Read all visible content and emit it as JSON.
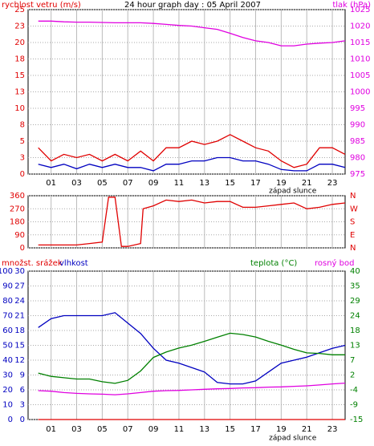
{
  "chart_data": [
    {
      "type": "line",
      "title": "24 hour graph day : 05 April 2007",
      "ylabel": "rychlost vetru (m/s)",
      "y2label": "tlak (hPa)",
      "ycolor": "#e00000",
      "y2color": "#e000e0",
      "x": [
        0,
        1,
        2,
        3,
        4,
        5,
        6,
        7,
        8,
        9,
        10,
        11,
        12,
        13,
        14,
        15,
        16,
        17,
        18,
        19,
        20,
        21,
        22,
        23,
        24
      ],
      "xlim": [
        -0.8,
        24
      ],
      "xticks": [
        {
          "value": 1,
          "label": "01"
        },
        {
          "value": 3,
          "label": "03"
        },
        {
          "value": 5,
          "label": "05"
        },
        {
          "value": 7,
          "label": "07"
        },
        {
          "value": 9,
          "label": "09"
        },
        {
          "value": 11,
          "label": "11"
        },
        {
          "value": 13,
          "label": "13"
        },
        {
          "value": 15,
          "label": "15"
        },
        {
          "value": 17,
          "label": "17"
        },
        {
          "value": 19,
          "label": "19"
        },
        {
          "value": 21,
          "label": "21"
        },
        {
          "value": 23,
          "label": "23"
        }
      ],
      "ylim": [
        0,
        25
      ],
      "yticks": [
        0,
        {
          "value": 2.5,
          "label": "3"
        },
        5,
        {
          "value": 7.5,
          "label": "8"
        },
        10,
        {
          "value": 12.5,
          "label": "13"
        },
        15,
        {
          "value": 17.5,
          "label": "18"
        },
        20,
        {
          "value": 22.5,
          "label": "23"
        },
        25
      ],
      "y2lim": [
        975,
        1025
      ],
      "y2ticks": [
        975,
        980,
        985,
        990,
        995,
        1000,
        1005,
        1010,
        1015,
        1020,
        1025
      ],
      "grid": true,
      "annotation": {
        "text": "západ slunce",
        "x": 19.9
      },
      "series": [
        {
          "color": "#e00000",
          "values": [
            4,
            2,
            3,
            2.5,
            3,
            2,
            3,
            2,
            3.5,
            2,
            4,
            4,
            5,
            4.5,
            5,
            6,
            5,
            4,
            3.5,
            2,
            1,
            1.5,
            4,
            4,
            3
          ]
        },
        {
          "color": "#0000c0",
          "values": [
            1.5,
            1,
            1.5,
            0.8,
            1.5,
            1,
            1.5,
            1,
            1,
            0.5,
            1.5,
            1.5,
            2,
            2,
            2.5,
            2.5,
            2,
            2,
            1.5,
            0.7,
            0.5,
            0.5,
            1.5,
            1.5,
            1
          ]
        },
        {
          "color": "#e000e0",
          "axis": "y2",
          "values": [
            1021.5,
            1021.5,
            1021.3,
            1021.2,
            1021.2,
            1021.1,
            1021,
            1021,
            1021,
            1020.8,
            1020.5,
            1020.2,
            1020,
            1019.5,
            1019,
            1017.8,
            1016.5,
            1015.5,
            1015,
            1014,
            1014,
            1014.5,
            1014.8,
            1015,
            1015.5
          ]
        }
      ]
    },
    {
      "type": "line",
      "ycolor": "#e00000",
      "y2color": "#e00000",
      "x": [
        0,
        1,
        2,
        3,
        4,
        5,
        5.5,
        6,
        6.5,
        7,
        8,
        8.2,
        9,
        10,
        11,
        12,
        13,
        14,
        15,
        16,
        17,
        18,
        19,
        20,
        21,
        22,
        23,
        24
      ],
      "xlim": [
        -0.8,
        24
      ],
      "xticks": [
        1,
        3,
        5,
        7,
        9,
        11,
        13,
        15,
        17,
        19,
        21,
        23
      ],
      "ylim": [
        0,
        360
      ],
      "yticks": [
        0,
        90,
        180,
        270,
        360
      ],
      "y2lim": [
        0,
        360
      ],
      "y2ticks": [
        {
          "value": 0,
          "label": "N"
        },
        {
          "value": 90,
          "label": "E"
        },
        {
          "value": 180,
          "label": "S"
        },
        {
          "value": 270,
          "label": "W"
        },
        {
          "value": 360,
          "label": "N"
        }
      ],
      "grid": true,
      "series": [
        {
          "color": "#e00000",
          "values": [
            20,
            20,
            20,
            20,
            30,
            40,
            350,
            350,
            10,
            10,
            30,
            270,
            290,
            330,
            320,
            330,
            310,
            320,
            320,
            280,
            280,
            290,
            300,
            310,
            270,
            280,
            300,
            310
          ]
        }
      ]
    },
    {
      "type": "line",
      "x": [
        0,
        1,
        2,
        3,
        4,
        5,
        6,
        7,
        8,
        9,
        10,
        11,
        12,
        13,
        14,
        15,
        16,
        17,
        18,
        19,
        20,
        21,
        22,
        23,
        24
      ],
      "xlim": [
        -0.8,
        24
      ],
      "xticks": [
        {
          "value": 1,
          "label": "01"
        },
        {
          "value": 3,
          "label": "03"
        },
        {
          "value": 5,
          "label": "05"
        },
        {
          "value": 7,
          "label": "07"
        },
        {
          "value": 9,
          "label": "09"
        },
        {
          "value": 11,
          "label": "11"
        },
        {
          "value": 13,
          "label": "13"
        },
        {
          "value": 15,
          "label": "15"
        },
        {
          "value": 17,
          "label": "17"
        },
        {
          "value": 19,
          "label": "19"
        },
        {
          "value": 21,
          "label": "21"
        },
        {
          "value": 23,
          "label": "23"
        }
      ],
      "ylim": [
        0,
        100
      ],
      "yticks": [
        0,
        10,
        20,
        30,
        40,
        50,
        60,
        70,
        80,
        90,
        100
      ],
      "y3lim": [
        0,
        30
      ],
      "y3ticks": [
        0,
        3,
        6,
        9,
        12,
        15,
        18,
        21,
        24,
        27,
        30
      ],
      "y2lim": [
        -15,
        40
      ],
      "y2ticks": [
        -15,
        {
          "value": -9.5,
          "label": "-9"
        },
        -4,
        {
          "value": 1.5,
          "label": "2"
        },
        7,
        {
          "value": 12.5,
          "label": "13"
        },
        18,
        {
          "value": 23.5,
          "label": "24"
        },
        29,
        {
          "value": 34.5,
          "label": "35"
        },
        40
      ],
      "ycolor": "#0000c0",
      "y3color": "#0000c0",
      "y2color": "#008000",
      "grid": true,
      "annotation": {
        "text": "západ slunce",
        "x": 19.9
      },
      "series": [
        {
          "name": "množst. srážek",
          "color": "#e00000",
          "axis": "y3",
          "values": [
            0,
            0,
            0,
            0,
            0,
            0,
            0,
            0,
            0,
            0,
            0,
            0,
            0,
            0,
            0,
            0,
            0,
            0,
            0,
            0,
            0,
            0,
            0,
            0,
            0
          ]
        },
        {
          "name": "vlhkost",
          "color": "#0000c0",
          "values": [
            62,
            68,
            70,
            70,
            70,
            70,
            72,
            65,
            58,
            48,
            40,
            38,
            35,
            32,
            25,
            24,
            24,
            26,
            32,
            38,
            40,
            42,
            45,
            48,
            50
          ]
        },
        {
          "name": "teplota (°C)",
          "color": "#008000",
          "axis": "y2",
          "values": [
            2.2,
            1,
            0.5,
            0,
            0,
            -1,
            -1.6,
            -0.5,
            3,
            8,
            10,
            11.5,
            12.6,
            14,
            15.5,
            17,
            16.5,
            15.6,
            14,
            12.6,
            11,
            9.7,
            9.5,
            9,
            9
          ]
        },
        {
          "name": "rosný bod",
          "color": "#e000e0",
          "axis": "y2",
          "values": [
            -4.3,
            -4.5,
            -5,
            -5.3,
            -5.5,
            -5.6,
            -5.8,
            -5.5,
            -5,
            -4.5,
            -4.3,
            -4.2,
            -4,
            -3.8,
            -3.6,
            -3.5,
            -3.3,
            -3.2,
            -3,
            -2.9,
            -2.7,
            -2.5,
            -2.2,
            -1.8,
            -1.5
          ]
        }
      ]
    }
  ]
}
